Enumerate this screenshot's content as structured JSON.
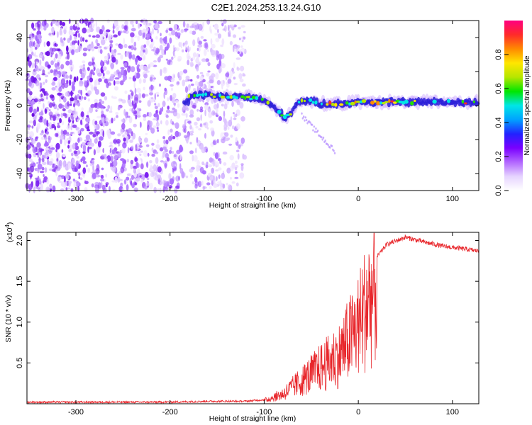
{
  "title": "C2E1.2024.253.13.24.G10",
  "colors": {
    "snr_line": "#e8262b",
    "spectro_base": "#8a2be2",
    "frame": "#000000"
  },
  "colorbar_gradient": [
    "#ffffff",
    "#e6d4ff",
    "#b266ff",
    "#7a00ff",
    "#2222ff",
    "#00a2ff",
    "#00e6e6",
    "#00e600",
    "#b6e600",
    "#ffe600",
    "#ff8a00",
    "#ff2a2a",
    "#ff0080"
  ],
  "chart_data": [
    {
      "type": "heatmap",
      "name": "spectrogram",
      "xlabel": "Height of straight line (km)",
      "ylabel": "Frequency (Hz)",
      "xlim": [
        -352,
        128
      ],
      "ylim": [
        -50,
        50
      ],
      "xticks": [
        -300,
        -200,
        -100,
        0,
        100
      ],
      "yticks": [
        -40,
        -20,
        0,
        20,
        40
      ],
      "noise_region_x": [
        -352,
        -120
      ],
      "signal_trace": [
        {
          "x": -180,
          "y": 6
        },
        {
          "x": -160,
          "y": 6
        },
        {
          "x": -140,
          "y": 5
        },
        {
          "x": -120,
          "y": 5
        },
        {
          "x": -105,
          "y": 4
        },
        {
          "x": -95,
          "y": 1
        },
        {
          "x": -85,
          "y": -3
        },
        {
          "x": -78,
          "y": -7
        },
        {
          "x": -72,
          "y": -5
        },
        {
          "x": -65,
          "y": 2
        },
        {
          "x": -55,
          "y": 3
        },
        {
          "x": -40,
          "y": 1
        },
        {
          "x": -20,
          "y": 1
        },
        {
          "x": 0,
          "y": 2
        },
        {
          "x": 40,
          "y": 2
        },
        {
          "x": 80,
          "y": 2
        },
        {
          "x": 128,
          "y": 2
        }
      ],
      "colorbar": {
        "label": "Normalized spectral amplitude",
        "range": [
          0,
          1
        ],
        "ticks": [
          "0.0",
          "0.2",
          "0.4",
          "0.6",
          "0.8"
        ]
      }
    },
    {
      "type": "line",
      "name": "snr",
      "xlabel": "Height of straight line (km)",
      "ylabel": "SNR (10 * v/v)",
      "exponent_label": "(x10",
      "exponent_sup": "4",
      "exponent_close": ")",
      "xlim": [
        -352,
        128
      ],
      "ylim": [
        0.0,
        2.1
      ],
      "xticks": [
        -300,
        -200,
        -100,
        0,
        100
      ],
      "yticks": [
        0.5,
        1.0,
        1.5,
        2.0
      ],
      "ytick_labels": [
        "0.5",
        "1.0",
        "1.5",
        "2.0"
      ],
      "envelope": [
        {
          "x": -352,
          "y": 0.02
        },
        {
          "x": -200,
          "y": 0.02
        },
        {
          "x": -160,
          "y": 0.03
        },
        {
          "x": -120,
          "y": 0.03
        },
        {
          "x": -100,
          "y": 0.05
        },
        {
          "x": -80,
          "y": 0.15
        },
        {
          "x": -60,
          "y": 0.35
        },
        {
          "x": -40,
          "y": 0.55
        },
        {
          "x": -20,
          "y": 0.75
        },
        {
          "x": 0,
          "y": 1.2
        },
        {
          "x": 10,
          "y": 1.55
        },
        {
          "x": 20,
          "y": 1.8
        },
        {
          "x": 30,
          "y": 1.95
        },
        {
          "x": 50,
          "y": 2.04
        },
        {
          "x": 70,
          "y": 1.98
        },
        {
          "x": 90,
          "y": 1.93
        },
        {
          "x": 110,
          "y": 1.9
        },
        {
          "x": 128,
          "y": 1.87
        }
      ]
    }
  ]
}
